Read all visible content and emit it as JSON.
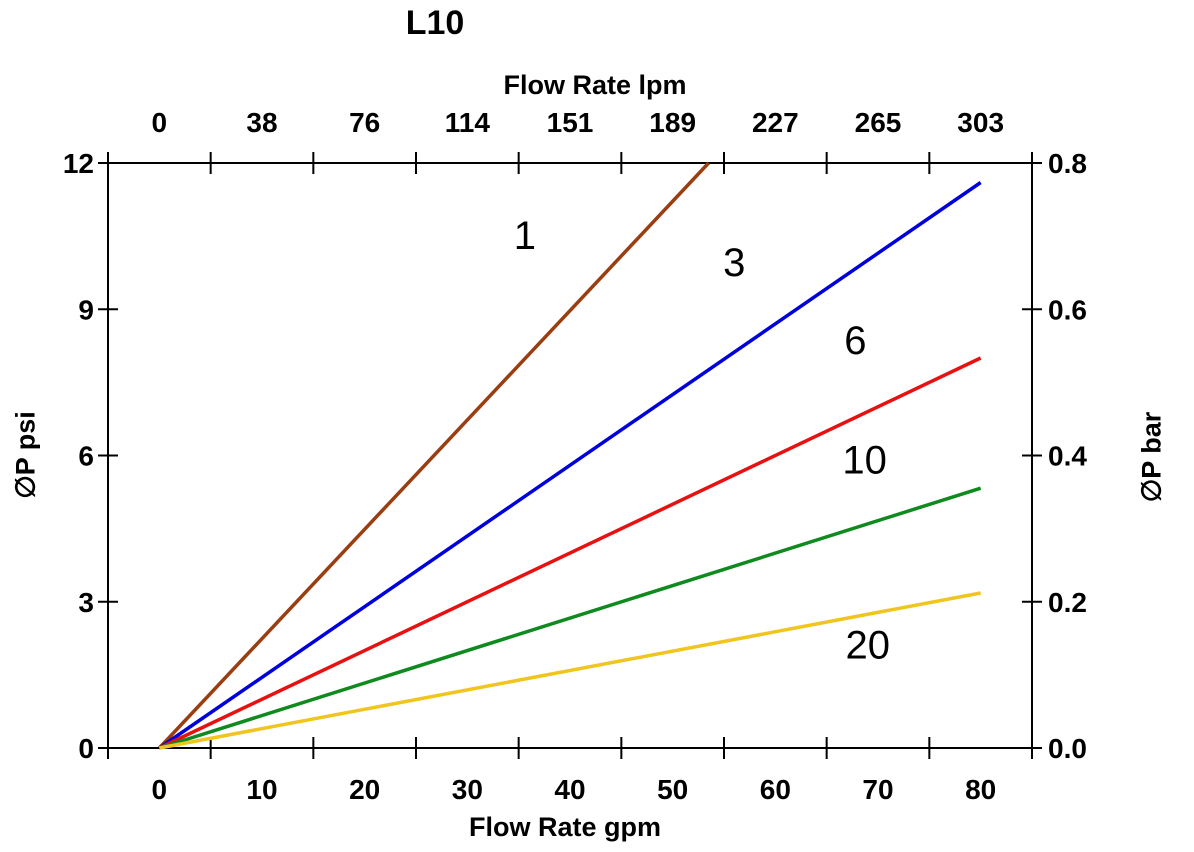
{
  "chart_data": {
    "type": "line",
    "title": "L10",
    "grid": false,
    "legend": "inline-labels-on-lines",
    "axes": {
      "bottom": {
        "title": "Flow Rate gpm",
        "tick_labels": [
          "0",
          "10",
          "20",
          "30",
          "40",
          "50",
          "60",
          "70",
          "80"
        ],
        "data_min": 0,
        "data_max": 80,
        "note": "labels centered between boundary ticks"
      },
      "top": {
        "title": "Flow Rate lpm",
        "tick_labels": [
          "0",
          "38",
          "76",
          "114",
          "151",
          "189",
          "227",
          "265",
          "303"
        ],
        "note": "lpm equivalents aligned with gpm labels"
      },
      "left": {
        "title": "∅P psi",
        "tick_labels": [
          "0",
          "3",
          "6",
          "9",
          "12"
        ],
        "data_min": 0,
        "data_max": 12
      },
      "right": {
        "title": "∅P bar",
        "tick_labels": [
          "0.0",
          "0.2",
          "0.4",
          "0.6",
          "0.8"
        ],
        "data_min": 0,
        "data_max": 0.8
      }
    },
    "series": [
      {
        "name": "1",
        "color": "#9A3D10",
        "points": [
          [
            0,
            0
          ],
          [
            53.5,
            12
          ]
        ],
        "label": "1",
        "label_at": [
          35.6,
          10.5
        ]
      },
      {
        "name": "3",
        "color": "#0000DC",
        "points": [
          [
            0,
            0
          ],
          [
            80,
            11.6
          ]
        ],
        "label": "3",
        "label_at": [
          56.0,
          9.95
        ]
      },
      {
        "name": "6",
        "color": "#E81111",
        "points": [
          [
            0,
            0
          ],
          [
            80,
            8.0
          ]
        ],
        "label": "6",
        "label_at": [
          67.8,
          8.35
        ]
      },
      {
        "name": "10",
        "color": "#0E8A1E",
        "points": [
          [
            0,
            0
          ],
          [
            80,
            5.33
          ]
        ],
        "label": "10",
        "label_at": [
          68.7,
          5.9
        ]
      },
      {
        "name": "20",
        "color": "#F0C51E",
        "points": [
          [
            0,
            0
          ],
          [
            80,
            3.18
          ]
        ],
        "label": "20",
        "label_at": [
          69.0,
          2.1
        ]
      }
    ]
  }
}
